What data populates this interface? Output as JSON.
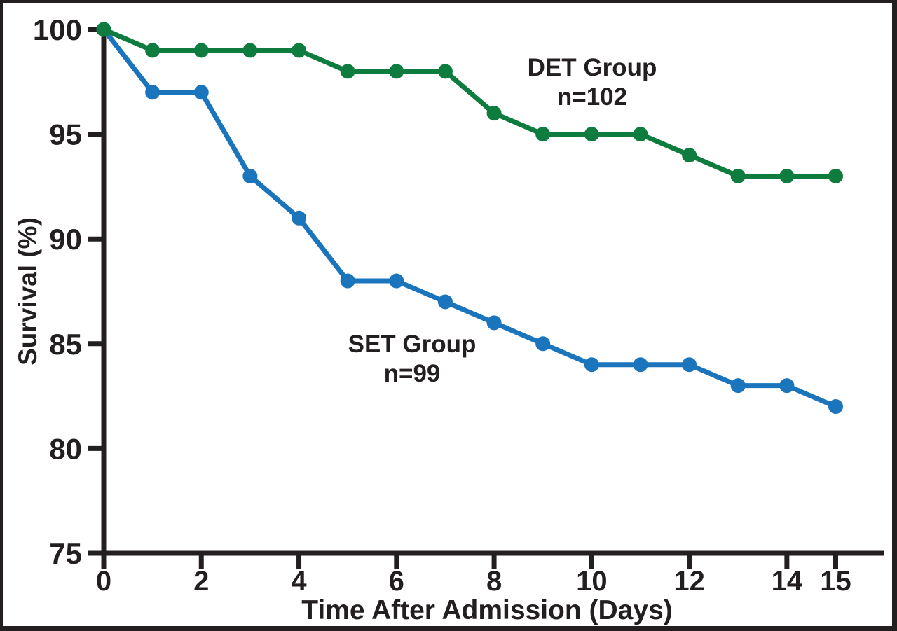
{
  "chart_data": {
    "type": "line",
    "title": "",
    "xlabel": "Time After Admission (Days)",
    "ylabel": "Survival (%)",
    "x": [
      0,
      1,
      2,
      3,
      4,
      5,
      6,
      7,
      8,
      9,
      10,
      11,
      12,
      13,
      14,
      15
    ],
    "xlim": [
      0,
      15
    ],
    "ylim": [
      75,
      100
    ],
    "x_ticks": [
      0,
      2,
      4,
      6,
      8,
      10,
      12,
      14,
      15
    ],
    "y_ticks": [
      75,
      80,
      85,
      90,
      95,
      100
    ],
    "grid": false,
    "legend_position": "inline-annotations",
    "series": [
      {
        "name": "DET Group",
        "annotation_line1": "DET Group",
        "annotation_line2": "n=102",
        "color": "#0e7c3e",
        "values": [
          100,
          99,
          99,
          99,
          99,
          98,
          98,
          98,
          96,
          95,
          95,
          95,
          94,
          93,
          93,
          93
        ]
      },
      {
        "name": "SET Group",
        "annotation_line1": "SET Group",
        "annotation_line2": "n=99",
        "color": "#1b75bc",
        "values": [
          100,
          97,
          97,
          93,
          91,
          88,
          88,
          87,
          86,
          85,
          84,
          84,
          84,
          83,
          83,
          82
        ]
      }
    ]
  },
  "colors": {
    "axis": "#231f20",
    "frame_border": "#231f20",
    "background": "#ffffff",
    "det_green": "#0e7c3e",
    "set_blue": "#1b75bc"
  }
}
